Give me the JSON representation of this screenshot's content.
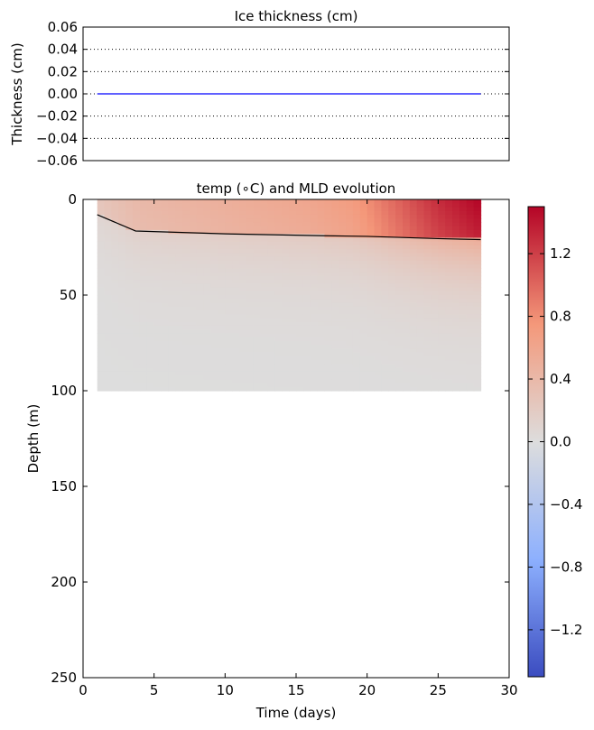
{
  "chart_data": [
    {
      "type": "line",
      "title": "Ice thickness (cm)",
      "xlabel": "",
      "ylabel": "Thickness (cm)",
      "xlim": [
        0,
        30
      ],
      "ylim": [
        -0.06,
        0.06
      ],
      "yticks": [
        "0.06",
        "0.04",
        "0.02",
        "0.00",
        "−0.02",
        "−0.04",
        "−0.06"
      ],
      "ytick_values": [
        0.06,
        0.04,
        0.02,
        0.0,
        -0.02,
        -0.04,
        -0.06
      ],
      "grid": "horizontal-dotted",
      "series": [
        {
          "color": "#0000ff",
          "x": [
            1,
            28
          ],
          "y": [
            0.0,
            0.0
          ]
        }
      ]
    },
    {
      "type": "heatmap",
      "title": "temp (∘C) and MLD evolution",
      "xlabel": "Time (days)",
      "ylabel": "Depth (m)",
      "xlim": [
        0,
        30
      ],
      "ylim": [
        250,
        0
      ],
      "xticks": [
        "0",
        "5",
        "10",
        "15",
        "20",
        "25",
        "30"
      ],
      "xtick_values": [
        0,
        5,
        10,
        15,
        20,
        25,
        30
      ],
      "yticks": [
        "0",
        "50",
        "100",
        "150",
        "200",
        "250"
      ],
      "ytick_values": [
        0,
        50,
        100,
        150,
        200,
        250
      ],
      "data_extent": {
        "time": [
          1,
          28
        ],
        "depth": [
          0,
          100
        ]
      },
      "colormap": "coolwarm",
      "colorbar": {
        "range": [
          -1.5,
          1.5
        ],
        "ticks": [
          "1.2",
          "0.8",
          "0.4",
          "0.0",
          "−0.4",
          "−0.8",
          "−1.2"
        ],
        "tick_values": [
          1.2,
          0.8,
          0.4,
          0.0,
          -0.4,
          -0.8,
          -1.2
        ]
      },
      "surface_temperature": {
        "time": [
          1,
          4,
          7,
          10,
          13,
          16,
          19,
          21,
          23,
          25,
          28
        ],
        "temp": [
          0.25,
          0.4,
          0.45,
          0.5,
          0.55,
          0.6,
          0.7,
          0.9,
          1.1,
          1.3,
          1.5
        ]
      },
      "mld_series": {
        "name": "MLD",
        "color": "#000000",
        "time": [
          1,
          3.7,
          10,
          17,
          20,
          25,
          28
        ],
        "depth": [
          8,
          16.5,
          18,
          19,
          19.3,
          20.5,
          21
        ]
      }
    }
  ]
}
